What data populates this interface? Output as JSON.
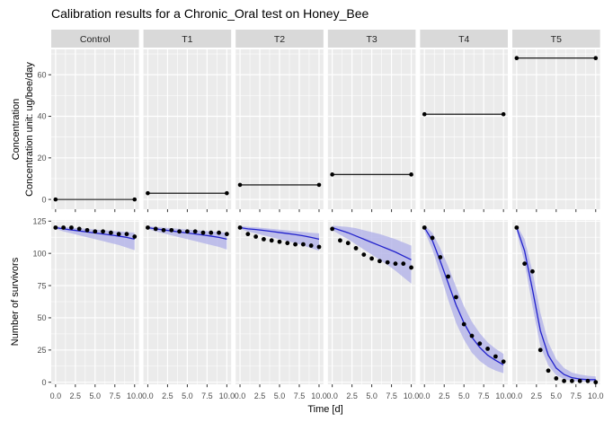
{
  "title": "Calibration results for a Chronic_Oral test on Honey_Bee",
  "facets": [
    "Control",
    "T1",
    "T2",
    "T3",
    "T4",
    "T5"
  ],
  "axes": {
    "x": {
      "label": "Time [d]",
      "tick_labels": [
        "0.0",
        "2.5",
        "5.0",
        "7.5",
        "10.0"
      ],
      "tick_values": [
        0,
        2.5,
        5,
        7.5,
        10
      ],
      "minor_ticks": [
        1.25,
        3.75,
        6.25,
        8.75
      ],
      "range": [
        -0.55,
        10.55
      ]
    },
    "y_top": {
      "label_line1": "Concentration",
      "label_line2": "Concentration unit: ug/bee/day",
      "tick_values": [
        0,
        20,
        40,
        60
      ],
      "minor_ticks": [
        10,
        30,
        50,
        70
      ],
      "range": [
        -4.7,
        72.2
      ]
    },
    "y_bottom": {
      "label": "Number of survivors",
      "tick_values": [
        0,
        25,
        50,
        75,
        100,
        125
      ],
      "minor_ticks": [
        12.5,
        37.5,
        62.5,
        87.5,
        112.5
      ],
      "range": [
        -1.6,
        125.9
      ]
    }
  },
  "colors": {
    "panel_bg": "#ebebeb",
    "grid": "#ffffff",
    "strip_bg": "#d9d9d9",
    "strip_text": "#262626",
    "axis_text": "#4d4d4d",
    "tick_mark": "#333333",
    "fit_line": "#2222cc",
    "ribbon": "#b3b3e8",
    "points": "#000000",
    "conc_line": "#000000"
  },
  "chart_data": {
    "type": "line",
    "title": "Calibration results for a Chronic_Oral test on Honey_Bee",
    "xlabel": "Time [d]",
    "x_days": [
      0,
      1,
      2,
      3,
      4,
      5,
      6,
      7,
      8,
      9,
      10
    ],
    "top_row": {
      "ylabel": "Concentration (ug/bee/day)",
      "ylim": [
        -4.7,
        72.2
      ],
      "description": "constant exposure concentration per treatment, line with end points",
      "values_by_facet": {
        "Control": 0,
        "T1": 3,
        "T2": 7,
        "T3": 12,
        "T4": 41,
        "T5": 68
      }
    },
    "bottom_row": {
      "ylabel": "Number of survivors",
      "ylim": [
        -1.6,
        125.9
      ],
      "description": "observed points, model fit line, credible-interval ribbon",
      "by_facet": {
        "Control": {
          "observed": [
            120,
            120,
            120,
            119,
            118,
            117,
            117,
            116,
            115,
            115,
            113
          ],
          "fit": [
            120,
            119,
            118.2,
            117.4,
            116.6,
            115.8,
            115,
            114.2,
            113.4,
            112.4,
            111
          ],
          "ribbon_low": [
            119,
            117,
            115.5,
            114,
            112.5,
            111,
            109.5,
            108,
            106.5,
            104.5,
            102.5
          ],
          "ribbon_high": [
            121,
            120.5,
            120,
            119.5,
            119,
            118.5,
            118,
            117.5,
            117,
            116.5,
            116
          ]
        },
        "T1": {
          "observed": [
            120,
            119,
            118,
            118,
            117,
            117,
            117,
            116,
            116,
            116,
            115
          ],
          "fit": [
            120,
            119,
            118.2,
            117.4,
            116.6,
            115.8,
            115,
            114.2,
            113.4,
            112.4,
            111
          ],
          "ribbon_low": [
            119,
            117,
            115.5,
            114,
            112.5,
            111,
            109.5,
            108,
            106.5,
            105,
            103
          ],
          "ribbon_high": [
            121,
            120.5,
            120,
            119.5,
            119,
            118.5,
            118,
            117.5,
            117,
            116.5,
            116
          ]
        },
        "T2": {
          "observed": [
            120,
            115,
            113,
            111,
            110,
            109,
            108,
            107,
            107,
            106,
            105
          ],
          "fit": [
            120,
            119,
            118.5,
            117.8,
            117,
            116.2,
            115.4,
            114.6,
            113.6,
            112.4,
            111
          ],
          "ribbon_low": [
            119,
            117,
            115.5,
            114,
            112.5,
            111,
            109.5,
            108,
            106,
            104,
            102
          ],
          "ribbon_high": [
            121,
            120.6,
            120.2,
            119.6,
            119,
            118.4,
            117.8,
            117.2,
            116.6,
            116,
            115.5
          ]
        },
        "T3": {
          "observed": [
            119,
            110,
            108,
            104,
            99,
            96,
            94,
            93,
            92,
            92,
            89
          ],
          "fit": [
            120,
            118,
            116,
            113.5,
            111,
            108.5,
            106,
            103.5,
            101,
            98,
            95
          ],
          "ribbon_low": [
            118,
            114.5,
            111,
            107,
            103,
            99,
            95,
            91,
            86.5,
            81.5,
            76.5
          ],
          "ribbon_high": [
            121.5,
            121,
            120.5,
            119.5,
            118,
            116.5,
            115,
            113,
            111,
            108.5,
            106
          ]
        },
        "T4": {
          "observed": [
            120,
            112,
            97,
            82,
            66,
            45,
            36,
            30,
            26,
            20,
            16
          ],
          "fit": [
            120,
            110,
            94,
            77,
            60,
            46,
            35,
            27,
            21,
            17,
            13.5
          ],
          "ribbon_low": [
            117.5,
            103,
            84,
            64,
            46,
            33,
            23,
            16.5,
            12,
            9,
            7
          ],
          "ribbon_high": [
            122,
            116,
            104,
            90,
            74,
            59,
            47,
            38,
            31,
            26,
            22
          ]
        },
        "T5": {
          "observed": [
            120,
            92,
            86,
            25,
            9,
            3,
            1,
            1,
            1,
            1,
            0
          ],
          "fit": [
            120,
            102,
            72,
            40,
            21,
            11,
            6,
            3.5,
            2.5,
            2,
            2
          ],
          "ribbon_low": [
            117,
            93,
            59,
            28,
            13,
            5.5,
            2.5,
            1,
            0.5,
            0.3,
            0.2
          ],
          "ribbon_high": [
            122,
            111,
            86,
            54,
            31,
            18,
            11,
            7.5,
            6,
            5,
            4.5
          ]
        }
      }
    }
  }
}
